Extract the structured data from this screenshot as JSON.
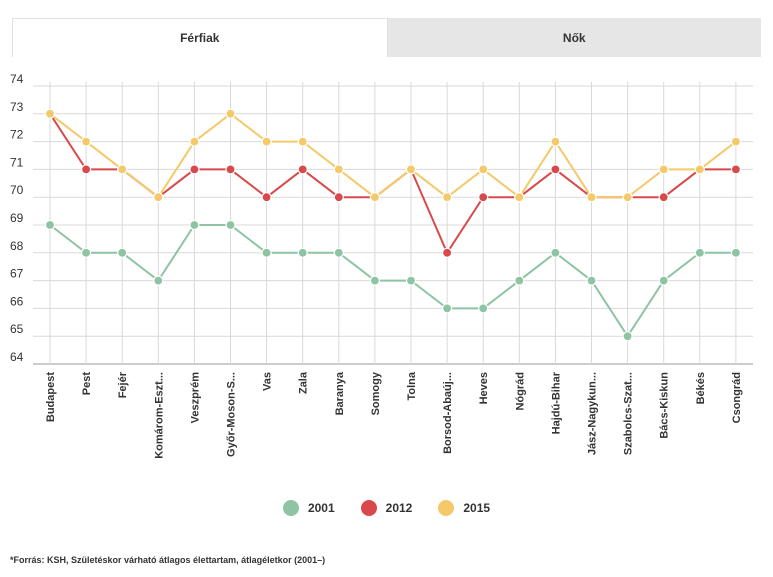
{
  "tabs": [
    {
      "label": "Férfiak",
      "active": true
    },
    {
      "label": "Nők",
      "active": false
    }
  ],
  "chart_data": {
    "type": "line",
    "categories": [
      "Budapest",
      "Pest",
      "Fejér",
      "Komárom-Eszt...",
      "Veszprém",
      "Győr-Moson-S...",
      "Vas",
      "Zala",
      "Baranya",
      "Somogy",
      "Tolna",
      "Borsod-Abaúj...",
      "Heves",
      "Nógrád",
      "Hajdú-Bihar",
      "Jász-Nagykun...",
      "Szabolcs-Szat...",
      "Bács-Kiskun",
      "Békés",
      "Csongrád"
    ],
    "series": [
      {
        "name": "2001",
        "color": "#8ec4a3",
        "values": [
          69,
          68,
          68,
          67,
          69,
          69,
          68,
          68,
          68,
          67,
          67,
          66,
          66,
          67,
          68,
          67,
          65,
          67,
          68,
          68
        ]
      },
      {
        "name": "2012",
        "color": "#d9494c",
        "values": [
          73,
          71,
          71,
          70,
          71,
          71,
          70,
          71,
          70,
          70,
          71,
          68,
          70,
          70,
          71,
          70,
          70,
          70,
          71,
          71
        ]
      },
      {
        "name": "2015",
        "color": "#f5c96a",
        "values": [
          73,
          72,
          71,
          70,
          72,
          73,
          72,
          72,
          71,
          70,
          71,
          70,
          71,
          70,
          72,
          70,
          70,
          71,
          71,
          72
        ]
      }
    ],
    "yticks": [
      74,
      73,
      72,
      71,
      70,
      69,
      68,
      67,
      66,
      65,
      64
    ],
    "ylim": [
      64,
      74
    ],
    "grid": true,
    "legend": "bottom"
  },
  "footnote": "*Forrás: KSH, Születéskor várható átlagos élettartam, átlagéletkor (2001–)"
}
